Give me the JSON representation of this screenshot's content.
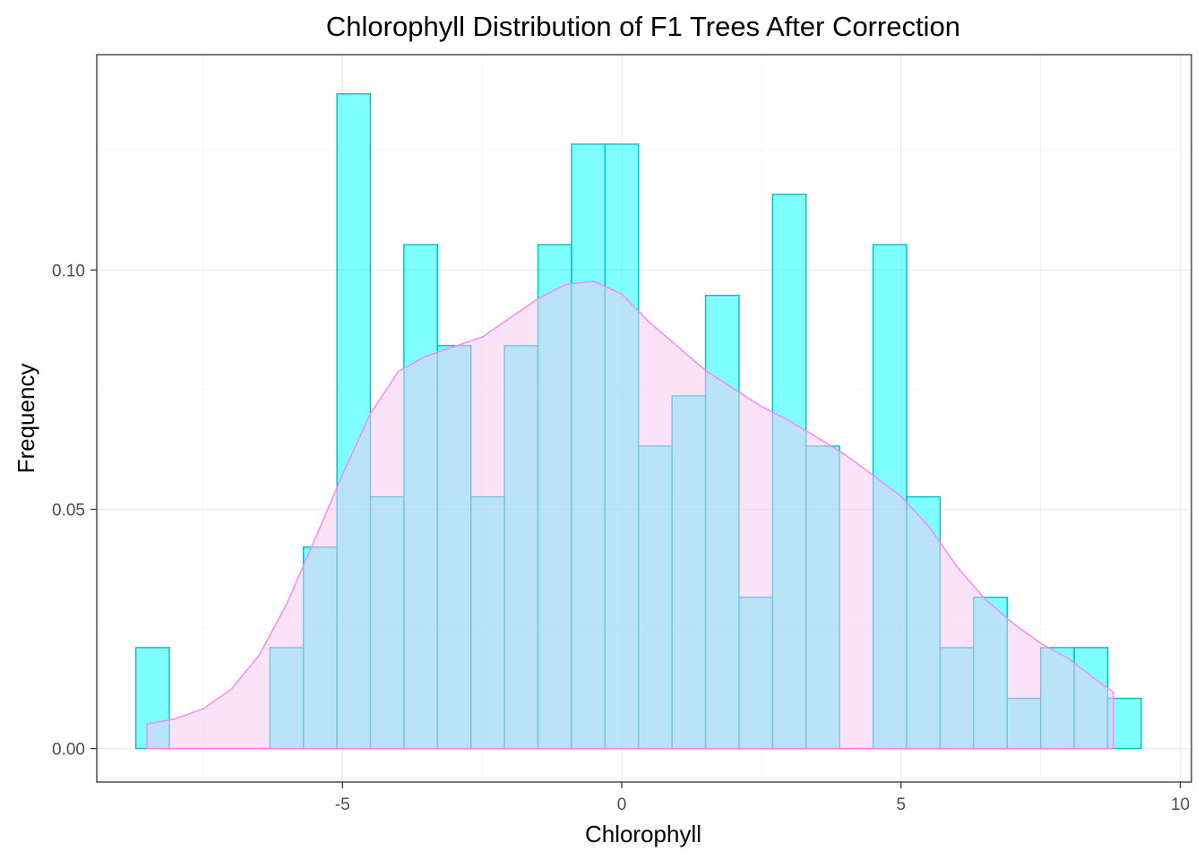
{
  "chart_data": {
    "type": "histogram",
    "title": "Chlorophyll Distribution of F1 Trees After Correction",
    "xlabel": "Chlorophyll",
    "ylabel": "Frequency",
    "xlim": [
      -9.4,
      10.2
    ],
    "ylim": [
      -0.007,
      0.145
    ],
    "x_ticks": [
      -5,
      0,
      5,
      10
    ],
    "x_tick_labels": [
      "-5",
      "0",
      "5",
      "10"
    ],
    "y_ticks": [
      0.0,
      0.05,
      0.1
    ],
    "y_tick_labels": [
      "0.00",
      "0.05",
      "0.10"
    ],
    "grid": true,
    "legend": "none",
    "series": [
      {
        "kind": "histogram",
        "bin_width": 0.6,
        "bin_starts": [
          -8.7,
          -8.1,
          -7.5,
          -6.9,
          -6.3,
          -5.7,
          -5.1,
          -4.5,
          -3.9,
          -3.3,
          -2.7,
          -2.1,
          -1.5,
          -0.9,
          -0.3,
          0.3,
          0.9,
          1.5,
          2.1,
          2.7,
          3.3,
          3.9,
          4.5,
          5.1,
          5.7,
          6.3,
          6.9,
          7.5,
          8.1,
          8.7
        ],
        "values": [
          0.0211,
          0,
          0,
          0,
          0.0211,
          0.0421,
          0.1368,
          0.0526,
          0.1053,
          0.0842,
          0.0526,
          0.0842,
          0.1053,
          0.1263,
          0.1263,
          0.0632,
          0.0737,
          0.0947,
          0.0316,
          0.1158,
          0.0632,
          0,
          0.1053,
          0.0526,
          0.0211,
          0.0316,
          0.0105,
          0.0211,
          0.0211,
          0.0105
        ],
        "fill": "#00FFFF",
        "fill_opacity": 0.5,
        "stroke": "#00BFC4"
      },
      {
        "kind": "density",
        "x": [
          -8.5,
          -8.0,
          -7.5,
          -7.0,
          -6.5,
          -6.0,
          -5.5,
          -5.0,
          -4.5,
          -4.0,
          -3.5,
          -3.0,
          -2.5,
          -2.0,
          -1.5,
          -1.0,
          -0.5,
          0.0,
          0.5,
          1.0,
          1.5,
          2.0,
          2.5,
          3.0,
          3.5,
          4.0,
          4.5,
          5.0,
          5.5,
          6.0,
          6.5,
          7.0,
          7.5,
          8.0,
          8.5,
          8.8
        ],
        "y": [
          0.0051,
          0.0062,
          0.0083,
          0.0123,
          0.0194,
          0.0302,
          0.0436,
          0.0573,
          0.07,
          0.0788,
          0.082,
          0.084,
          0.086,
          0.09,
          0.094,
          0.097,
          0.0976,
          0.095,
          0.089,
          0.084,
          0.079,
          0.0752,
          0.0715,
          0.0685,
          0.065,
          0.0614,
          0.0571,
          0.0527,
          0.0464,
          0.038,
          0.0313,
          0.0262,
          0.022,
          0.0188,
          0.0143,
          0.0118
        ],
        "fill": "#F8C8F0",
        "fill_opacity": 0.5,
        "stroke": "#FF80FF"
      }
    ]
  }
}
